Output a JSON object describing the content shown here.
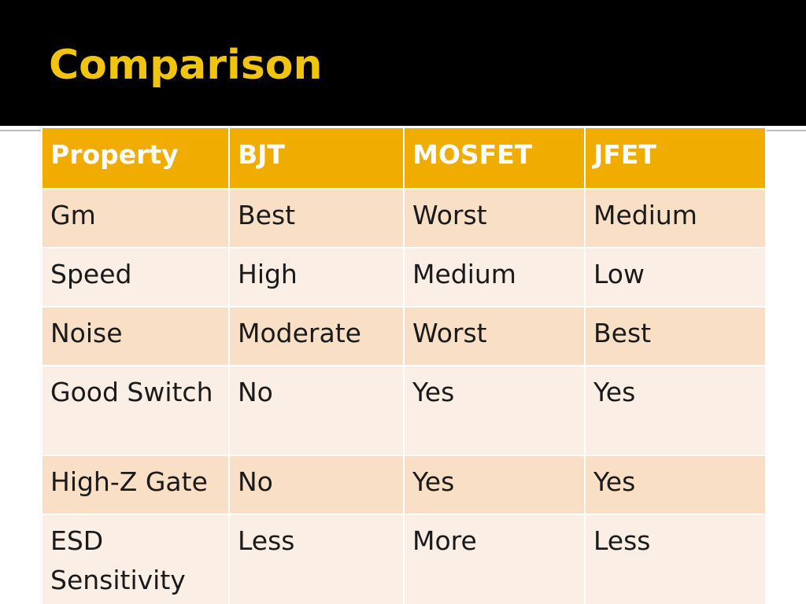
{
  "slide": {
    "title": "Comparison"
  },
  "table": {
    "headers": [
      "Property",
      "BJT",
      "MOSFET",
      "JFET"
    ],
    "rows": [
      [
        "Gm",
        "Best",
        "Worst",
        "Medium"
      ],
      [
        "Speed",
        "High",
        "Medium",
        "Low"
      ],
      [
        "Noise",
        "Moderate",
        "Worst",
        "Best"
      ],
      [
        "Good Switch",
        "No",
        "Yes",
        "Yes"
      ],
      [
        "High-Z Gate",
        "No",
        "Yes",
        "Yes"
      ],
      [
        "ESD Sensitivity",
        "Less",
        "More",
        "Less"
      ]
    ]
  },
  "colors": {
    "title_text": "#f1c40f",
    "header_fill": "#f0ac00",
    "row_fill_odd": "#f8dfc6",
    "row_fill_even": "#fbeee4"
  }
}
